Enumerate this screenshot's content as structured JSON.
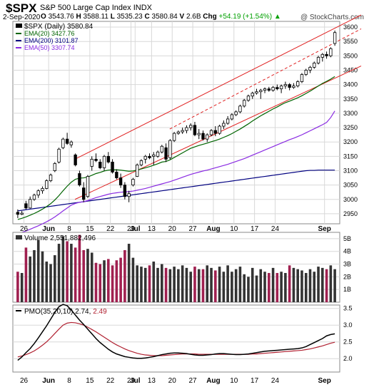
{
  "header": {
    "symbol": "$SPX",
    "name": "S&P 500 Large Cap Index",
    "exchange": "INDX",
    "date": "2-Sep-2020",
    "open_label": "O",
    "open": "3543.76",
    "high_label": "H",
    "high": "3588.11",
    "low_label": "L",
    "low": "3535.23",
    "close_label": "C",
    "close": "3580.84",
    "volume_label": "V",
    "volume": "2.6B",
    "chg_label": "Chg",
    "chg": "+54.19 (+1.54%)",
    "chg_arrow": "▲",
    "watermark": "@ StockCharts.com"
  },
  "legend": {
    "price": "$SPX (Daily) 3580.84",
    "ema20": "EMA(20) 3427.76",
    "ema200": "EMA(200) 3101.87",
    "ema50": "EMA(50) 3307.74",
    "volume": "Volume 2,551,882,496",
    "pmo_name": "PMO(35,20,10)",
    "pmo_val": "2.74",
    "pmo_sig": "2.49"
  },
  "colors": {
    "up": "#ffffff",
    "down": "#000000",
    "ema20": "#006400",
    "ema50": "#8a2be2",
    "ema200": "#000080",
    "channel": "#e02020",
    "vol_up": "#333333",
    "vol_down": "#a02050",
    "pmo": "#000000",
    "pmo_signal": "#b02030",
    "grid": "#d8d8d8",
    "panel_bg": "#ffffff"
  },
  "chart_data": {
    "type": "candlestick",
    "x_tick_labels": [
      "26",
      "Jun",
      "8",
      "15",
      "22",
      "29",
      "Jul",
      "13",
      "20",
      "27",
      "Aug",
      "10",
      "17",
      "24",
      "Sep"
    ],
    "price_axis": {
      "ticks": [
        2950,
        3000,
        3050,
        3100,
        3150,
        3200,
        3250,
        3300,
        3350,
        3400,
        3450,
        3500,
        3550,
        3600
      ],
      "range": [
        2915,
        3620
      ]
    },
    "volume_axis": {
      "ticks": [
        "1B",
        "2B",
        "3B",
        "4B",
        "5B"
      ],
      "range": [
        0,
        5.5
      ]
    },
    "pmo_axis": {
      "ticks": [
        "2.0",
        "2.5",
        "3.0",
        "3.5"
      ],
      "range": [
        1.6,
        3.6
      ]
    },
    "candles": [
      [
        2955,
        2965,
        2935,
        2948
      ],
      [
        2948,
        2960,
        2945,
        2952
      ],
      [
        2985,
        2995,
        2965,
        2970
      ],
      [
        2970,
        3010,
        2968,
        3000
      ],
      [
        3000,
        3020,
        2995,
        3015
      ],
      [
        3015,
        3035,
        3005,
        3030
      ],
      [
        3030,
        3045,
        3020,
        3038
      ],
      [
        3038,
        3070,
        3035,
        3065
      ],
      [
        3065,
        3090,
        3060,
        3085
      ],
      [
        3100,
        3130,
        3095,
        3125
      ],
      [
        3130,
        3180,
        3125,
        3175
      ],
      [
        3180,
        3215,
        3175,
        3210
      ],
      [
        3210,
        3232,
        3190,
        3195
      ],
      [
        3190,
        3205,
        3180,
        3200
      ],
      [
        3155,
        3160,
        3115,
        3120
      ],
      [
        3090,
        3100,
        3045,
        3050
      ],
      [
        3040,
        3060,
        2990,
        3000
      ],
      [
        3010,
        3085,
        3005,
        3080
      ],
      [
        3115,
        3150,
        3100,
        3140
      ],
      [
        3140,
        3160,
        3130,
        3135
      ],
      [
        3130,
        3140,
        3105,
        3110
      ],
      [
        3110,
        3155,
        3100,
        3150
      ],
      [
        3150,
        3165,
        3125,
        3130
      ],
      [
        3130,
        3140,
        3090,
        3095
      ],
      [
        3095,
        3105,
        3070,
        3075
      ],
      [
        3075,
        3090,
        3040,
        3050
      ],
      [
        3050,
        3060,
        3000,
        3010
      ],
      [
        3010,
        3030,
        2990,
        3020
      ],
      [
        3050,
        3075,
        3045,
        3070
      ],
      [
        3080,
        3125,
        3078,
        3120
      ],
      [
        3120,
        3140,
        3115,
        3135
      ],
      [
        3140,
        3155,
        3125,
        3150
      ],
      [
        3150,
        3160,
        3140,
        3145
      ],
      [
        3150,
        3165,
        3120,
        3155
      ],
      [
        3150,
        3170,
        3145,
        3165
      ],
      [
        3165,
        3190,
        3160,
        3185
      ],
      [
        3180,
        3195,
        3130,
        3140
      ],
      [
        3145,
        3210,
        3140,
        3205
      ],
      [
        3205,
        3235,
        3200,
        3230
      ],
      [
        3230,
        3240,
        3225,
        3235
      ],
      [
        3235,
        3250,
        3228,
        3240
      ],
      [
        3240,
        3258,
        3230,
        3250
      ],
      [
        3250,
        3265,
        3240,
        3258
      ],
      [
        3258,
        3270,
        3220,
        3225
      ],
      [
        3225,
        3245,
        3210,
        3230
      ],
      [
        3230,
        3240,
        3205,
        3210
      ],
      [
        3210,
        3230,
        3200,
        3225
      ],
      [
        3225,
        3245,
        3220,
        3240
      ],
      [
        3240,
        3255,
        3220,
        3230
      ],
      [
        3230,
        3260,
        3225,
        3255
      ],
      [
        3255,
        3275,
        3245,
        3265
      ],
      [
        3265,
        3290,
        3260,
        3280
      ],
      [
        3280,
        3300,
        3275,
        3295
      ],
      [
        3295,
        3310,
        3290,
        3305
      ],
      [
        3305,
        3330,
        3300,
        3325
      ],
      [
        3325,
        3350,
        3320,
        3345
      ],
      [
        3345,
        3365,
        3340,
        3360
      ],
      [
        3360,
        3375,
        3350,
        3370
      ],
      [
        3370,
        3385,
        3365,
        3375
      ],
      [
        3375,
        3385,
        3350,
        3380
      ],
      [
        3380,
        3390,
        3370,
        3385
      ],
      [
        3385,
        3392,
        3375,
        3380
      ],
      [
        3380,
        3395,
        3375,
        3390
      ],
      [
        3390,
        3400,
        3380,
        3385
      ],
      [
        3385,
        3400,
        3370,
        3395
      ],
      [
        3395,
        3410,
        3385,
        3400
      ],
      [
        3400,
        3405,
        3380,
        3390
      ],
      [
        3390,
        3405,
        3385,
        3395
      ],
      [
        3395,
        3415,
        3390,
        3410
      ],
      [
        3410,
        3440,
        3405,
        3435
      ],
      [
        3435,
        3455,
        3430,
        3450
      ],
      [
        3450,
        3465,
        3440,
        3460
      ],
      [
        3460,
        3480,
        3455,
        3475
      ],
      [
        3475,
        3500,
        3470,
        3495
      ],
      [
        3495,
        3510,
        3480,
        3505
      ],
      [
        3505,
        3515,
        3490,
        3500
      ],
      [
        3500,
        3530,
        3495,
        3525
      ],
      [
        3543,
        3588,
        3535,
        3581
      ]
    ],
    "ema20": [
      2930,
      2934,
      2939,
      2945,
      2951,
      2958,
      2966,
      2975,
      2985,
      2998,
      3013,
      3030,
      3046,
      3060,
      3070,
      3074,
      3075,
      3078,
      3084,
      3090,
      3094,
      3099,
      3102,
      3103,
      3103,
      3102,
      3100,
      3098,
      3099,
      3102,
      3106,
      3110,
      3114,
      3119,
      3124,
      3130,
      3132,
      3138,
      3146,
      3154,
      3162,
      3170,
      3178,
      3183,
      3188,
      3192,
      3196,
      3201,
      3205,
      3210,
      3216,
      3222,
      3229,
      3237,
      3245,
      3254,
      3263,
      3273,
      3282,
      3291,
      3299,
      3307,
      3315,
      3322,
      3330,
      3337,
      3342,
      3348,
      3354,
      3361,
      3369,
      3377,
      3386,
      3395,
      3404,
      3411,
      3419,
      3428
    ],
    "ema50": [
      2880,
      2885,
      2890,
      2896,
      2902,
      2908,
      2915,
      2922,
      2930,
      2939,
      2949,
      2960,
      2970,
      2980,
      2986,
      2990,
      2992,
      2996,
      3001,
      3006,
      3010,
      3014,
      3018,
      3021,
      3023,
      3025,
      3026,
      3027,
      3029,
      3032,
      3035,
      3038,
      3042,
      3046,
      3050,
      3054,
      3058,
      3062,
      3067,
      3072,
      3077,
      3082,
      3087,
      3091,
      3095,
      3099,
      3102,
      3106,
      3110,
      3114,
      3118,
      3122,
      3127,
      3132,
      3137,
      3142,
      3148,
      3154,
      3160,
      3166,
      3172,
      3178,
      3184,
      3190,
      3196,
      3202,
      3208,
      3213,
      3219,
      3225,
      3232,
      3239,
      3246,
      3253,
      3260,
      3268,
      3285,
      3308
    ],
    "ema200": [
      2960,
      2962,
      2964,
      2966,
      2968,
      2970,
      2972,
      2974,
      2976,
      2978,
      2980,
      2982,
      2984,
      2986,
      2988,
      2990,
      2992,
      2994,
      2996,
      2998,
      3000,
      3002,
      3004,
      3006,
      3008,
      3010,
      3012,
      3014,
      3016,
      3018,
      3020,
      3022,
      3024,
      3026,
      3028,
      3030,
      3032,
      3034,
      3036,
      3038,
      3040,
      3042,
      3044,
      3046,
      3048,
      3050,
      3052,
      3054,
      3056,
      3058,
      3060,
      3062,
      3064,
      3066,
      3068,
      3070,
      3072,
      3074,
      3076,
      3078,
      3080,
      3082,
      3084,
      3086,
      3088,
      3090,
      3092,
      3094,
      3096,
      3098,
      3100,
      3101,
      3101,
      3102,
      3102,
      3102,
      3102,
      3102
    ],
    "volume": [
      2.4,
      2.3,
      4.3,
      3.6,
      4.1,
      4.9,
      4.0,
      3.2,
      3.0,
      3.7,
      4.6,
      5.2,
      4.8,
      4.6,
      4.3,
      5.3,
      4.1,
      4.2,
      3.9,
      3.1,
      3.0,
      3.3,
      3.4,
      2.9,
      3.3,
      3.5,
      4.1,
      4.6,
      3.5,
      2.9,
      2.8,
      2.7,
      2.9,
      3.2,
      2.7,
      3.0,
      2.7,
      2.6,
      2.8,
      2.6,
      2.9,
      2.7,
      2.4,
      2.8,
      2.6,
      2.6,
      2.9,
      2.7,
      2.5,
      2.8,
      2.4,
      2.9,
      2.4,
      2.6,
      2.8,
      2.2,
      2.0,
      2.7,
      2.1,
      2.6,
      2.4,
      2.3,
      2.7,
      2.3,
      2.4,
      2.3,
      2.9,
      2.7,
      2.6,
      2.5,
      2.3,
      2.6,
      2.4,
      2.8,
      2.7,
      2.6,
      2.9,
      2.6
    ],
    "pmo": [
      1.95,
      2.05,
      2.18,
      2.3,
      2.45,
      2.62,
      2.8,
      2.98,
      3.18,
      3.38,
      3.55,
      3.62,
      3.58,
      3.45,
      3.3,
      3.15,
      3.02,
      2.88,
      2.74,
      2.6,
      2.48,
      2.38,
      2.28,
      2.2,
      2.14,
      2.1,
      2.06,
      2.04,
      2.02,
      2.01,
      2.01,
      2.02,
      2.04,
      2.06,
      2.09,
      2.12,
      2.14,
      2.16,
      2.17,
      2.17,
      2.16,
      2.15,
      2.13,
      2.11,
      2.1,
      2.1,
      2.11,
      2.12,
      2.14,
      2.15,
      2.15,
      2.14,
      2.13,
      2.12,
      2.12,
      2.13,
      2.14,
      2.16,
      2.18,
      2.2,
      2.22,
      2.23,
      2.24,
      2.25,
      2.26,
      2.27,
      2.28,
      2.29,
      2.3,
      2.32,
      2.36,
      2.42,
      2.48,
      2.54,
      2.6,
      2.68,
      2.72,
      2.74
    ],
    "pmo_signal": [
      2.05,
      2.08,
      2.12,
      2.17,
      2.23,
      2.31,
      2.4,
      2.5,
      2.62,
      2.75,
      2.88,
      3.0,
      3.06,
      3.08,
      3.07,
      3.04,
      3.0,
      2.94,
      2.87,
      2.8,
      2.72,
      2.64,
      2.56,
      2.48,
      2.41,
      2.35,
      2.29,
      2.24,
      2.2,
      2.16,
      2.13,
      2.11,
      2.1,
      2.09,
      2.09,
      2.09,
      2.1,
      2.11,
      2.12,
      2.13,
      2.14,
      2.14,
      2.14,
      2.14,
      2.13,
      2.13,
      2.13,
      2.13,
      2.13,
      2.13,
      2.13,
      2.13,
      2.13,
      2.13,
      2.13,
      2.13,
      2.13,
      2.14,
      2.14,
      2.15,
      2.16,
      2.17,
      2.18,
      2.19,
      2.2,
      2.21,
      2.22,
      2.23,
      2.24,
      2.25,
      2.27,
      2.29,
      2.32,
      2.35,
      2.38,
      2.42,
      2.46,
      2.49
    ],
    "channel": [
      {
        "from": [
          3140,
          0.19
        ],
        "to": [
          3605,
          1.0
        ],
        "style": "solid"
      },
      {
        "from": [
          3000,
          0.19
        ],
        "to": [
          3430,
          1.0
        ],
        "style": "solid"
      },
      {
        "from": [
          3245,
          0.48
        ],
        "to": [
          3555,
          1.0
        ],
        "style": "dashed"
      }
    ]
  }
}
